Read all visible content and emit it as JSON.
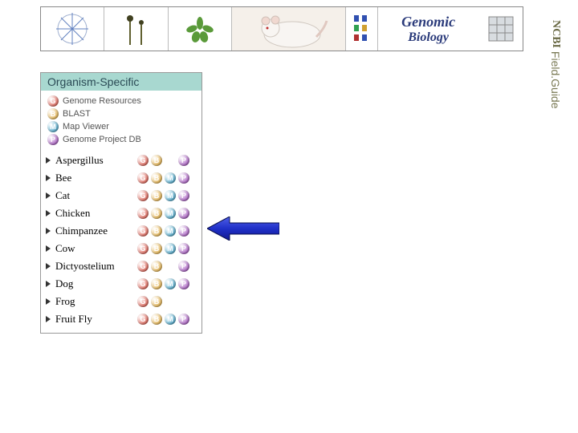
{
  "banner": {
    "title_line1": "Genomic",
    "title_line2": "Biology"
  },
  "sidebar_label": {
    "strong": "NCBI",
    "rest": " Field.Guide"
  },
  "panel": {
    "header": "Organism-Specific",
    "legend": [
      {
        "key": "G",
        "label": "Genome Resources",
        "color": "#d83a2a"
      },
      {
        "key": "B",
        "label": "BLAST",
        "color": "#e0a020"
      },
      {
        "key": "M",
        "label": "Map Viewer",
        "color": "#2094c0"
      },
      {
        "key": "P",
        "label": "Genome Project DB",
        "color": "#9030b0"
      }
    ],
    "organisms": [
      {
        "name": "Aspergillus",
        "G": true,
        "B": true,
        "M": false,
        "P": true
      },
      {
        "name": "Bee",
        "G": true,
        "B": true,
        "M": true,
        "P": true
      },
      {
        "name": "Cat",
        "G": true,
        "B": true,
        "M": true,
        "P": true
      },
      {
        "name": "Chicken",
        "G": true,
        "B": true,
        "M": true,
        "P": true
      },
      {
        "name": "Chimpanzee",
        "G": true,
        "B": true,
        "M": true,
        "P": true
      },
      {
        "name": "Cow",
        "G": true,
        "B": true,
        "M": true,
        "P": true
      },
      {
        "name": "Dictyostelium",
        "G": true,
        "B": true,
        "M": false,
        "P": true
      },
      {
        "name": "Dog",
        "G": true,
        "B": true,
        "M": true,
        "P": true
      },
      {
        "name": "Frog",
        "G": true,
        "B": true,
        "M": false,
        "P": false
      },
      {
        "name": "Fruit Fly",
        "G": true,
        "B": true,
        "M": true,
        "P": true
      }
    ]
  },
  "orb_colors": {
    "G": "#d83a2a",
    "B": "#e0a020",
    "M": "#2094c0",
    "P": "#9030b0"
  },
  "arrow": {
    "fill": "#2030c8",
    "stroke": "#101060",
    "points_at_row_index": 4
  }
}
